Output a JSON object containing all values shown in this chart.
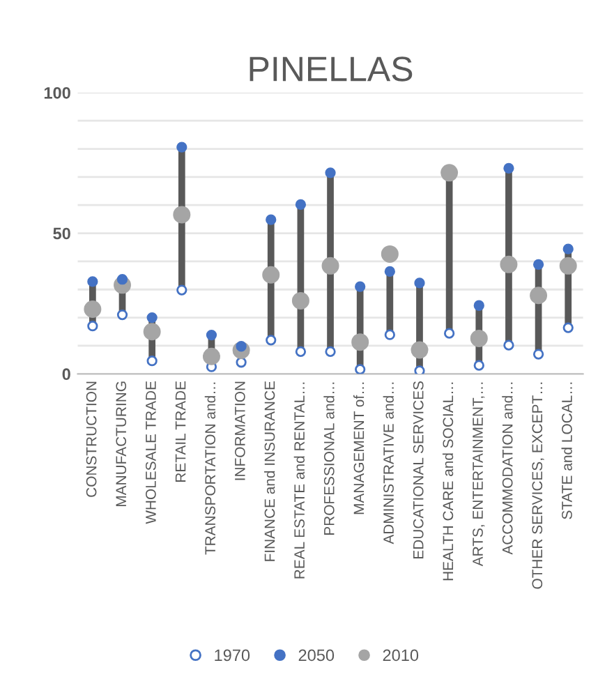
{
  "chart_data": {
    "type": "scatter",
    "title": "PINELLAS",
    "categories": [
      "CONSTRUCTION",
      "MANUFACTURING",
      "WHOLESALE TRADE",
      "RETAIL TRADE",
      "TRANSPORTATION and…",
      "INFORMATION",
      "FINANCE and INSURANCE",
      "REAL ESTATE and RENTAL…",
      "PROFESSIONAL and…",
      "MANAGEMENT of…",
      "ADMINISTRATIVE and…",
      "EDUCATIONAL SERVICES",
      "HEALTH CARE and SOCIAL…",
      "ARTS, ENTERTAINMENT,…",
      "ACCOMMODATION and…",
      "OTHER SERVICES, EXCEPT…",
      "STATE and LOCAL…"
    ],
    "series": [
      {
        "name": "1970",
        "color": "#4472c4",
        "values": [
          17,
          21,
          4.6,
          29.8,
          2.5,
          4.1,
          12,
          7.9,
          7.9,
          1.6,
          13.9,
          1.1,
          14.4,
          3,
          10.2,
          7,
          16.4
        ]
      },
      {
        "name": "2050",
        "color": "#4472c4",
        "values": [
          32.8,
          33.6,
          20,
          80.6,
          13.8,
          9.8,
          54.8,
          60.2,
          71.5,
          31,
          36.4,
          32.3,
          null,
          24.3,
          73.1,
          38.9,
          44.4
        ]
      },
      {
        "name": "2010",
        "color": "#a5a5a5",
        "values": [
          23,
          31.6,
          15,
          56.6,
          6.2,
          8.4,
          35.2,
          26,
          38.4,
          11.3,
          42.6,
          8.5,
          71.5,
          12.6,
          38.9,
          27.9,
          38.4
        ]
      }
    ],
    "ylim": [
      0,
      100
    ],
    "yticks": [
      0,
      {
        "value": 10,
        "label": null
      },
      {
        "value": 20,
        "label": null
      },
      {
        "value": 30,
        "label": null
      },
      {
        "value": 40,
        "label": null
      },
      50,
      {
        "value": 60,
        "label": null
      },
      {
        "value": 70,
        "label": null
      },
      {
        "value": 80,
        "label": null
      },
      {
        "value": 90,
        "label": null
      },
      100
    ],
    "grid": "y",
    "legend": "bottom",
    "marker": "circle"
  }
}
